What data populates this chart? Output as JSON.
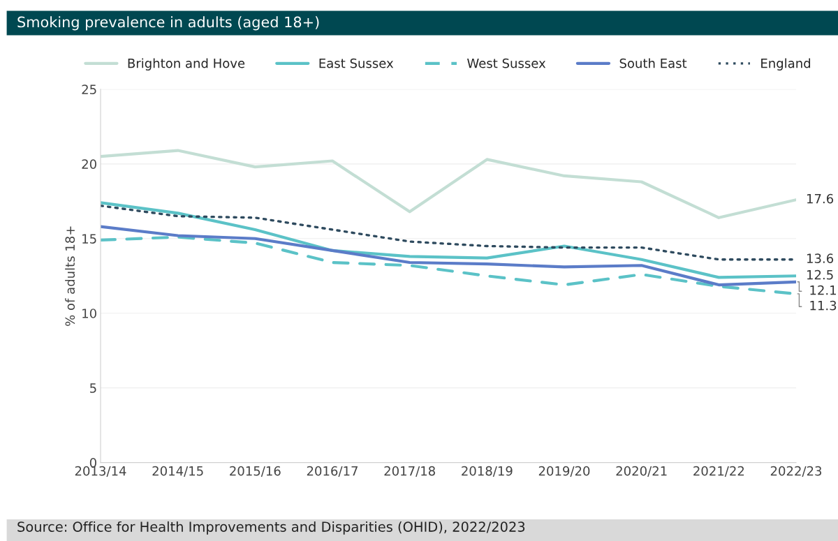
{
  "chart_data": {
    "type": "line",
    "title": "Smoking prevalence in adults (aged 18+)",
    "ylabel": "% of adults 18+",
    "categories": [
      "2013/14",
      "2014/15",
      "2015/16",
      "2016/17",
      "2017/18",
      "2018/19",
      "2019/20",
      "2020/21",
      "2021/22",
      "2022/23"
    ],
    "series": [
      {
        "name": "Brighton and Hove",
        "color": "#c3ded4",
        "line_style": "solid",
        "values": [
          20.5,
          20.9,
          19.8,
          20.2,
          16.8,
          20.3,
          19.2,
          18.8,
          16.4,
          17.6
        ],
        "value_labels": [
          null,
          null,
          null,
          null,
          null,
          null,
          null,
          null,
          null,
          "17.6"
        ]
      },
      {
        "name": "East Sussex",
        "color": "#5bc2c7",
        "line_style": "solid",
        "values": [
          17.4,
          16.7,
          15.6,
          14.2,
          13.8,
          13.7,
          14.5,
          13.6,
          12.4,
          12.5
        ],
        "value_labels": [
          null,
          null,
          null,
          null,
          null,
          null,
          null,
          null,
          null,
          "12.5"
        ]
      },
      {
        "name": "West Sussex",
        "color": "#5bc2c7",
        "line_style": "dashed",
        "values": [
          14.9,
          15.1,
          14.7,
          13.4,
          13.2,
          12.5,
          11.9,
          12.6,
          11.8,
          11.3
        ],
        "value_labels": [
          null,
          null,
          null,
          null,
          null,
          null,
          null,
          null,
          null,
          "11.3"
        ]
      },
      {
        "name": "South East",
        "color": "#5b7cc8",
        "line_style": "solid",
        "values": [
          15.8,
          15.2,
          15.0,
          14.2,
          13.4,
          13.3,
          13.1,
          13.2,
          11.9,
          12.1
        ],
        "value_labels": [
          null,
          null,
          null,
          null,
          null,
          null,
          null,
          null,
          null,
          "12.1"
        ]
      },
      {
        "name": "England",
        "color": "#2e4a5e",
        "line_style": "dotted",
        "values": [
          17.2,
          16.5,
          16.4,
          15.6,
          14.8,
          14.5,
          14.4,
          14.4,
          13.6,
          13.6
        ],
        "value_labels": [
          null,
          null,
          null,
          null,
          null,
          null,
          null,
          null,
          null,
          "13.6"
        ]
      }
    ],
    "ylim": [
      0,
      25
    ],
    "yticks": [
      0,
      5,
      10,
      15,
      20,
      25
    ],
    "grid": "y",
    "legend": "top",
    "marker": "none",
    "annotations": [
      "Source: Office for Health Improvements and Disparities (OHID), 2022/2023"
    ]
  }
}
